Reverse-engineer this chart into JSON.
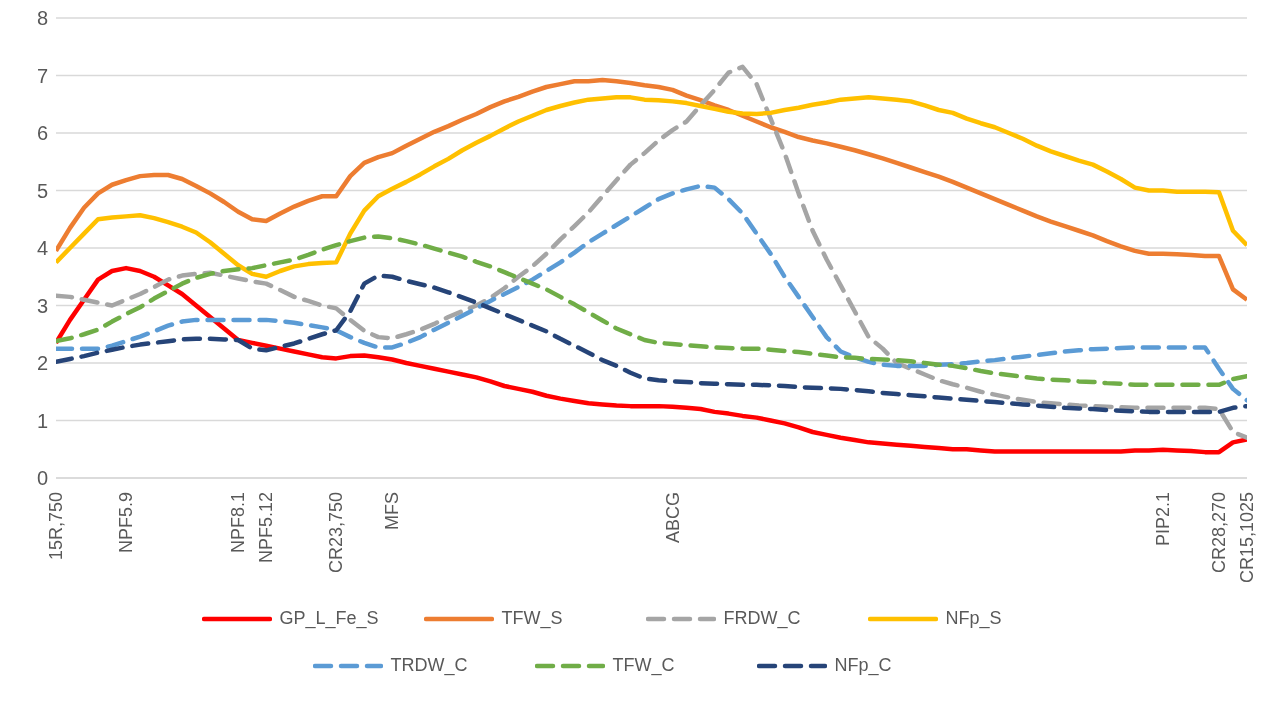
{
  "chart_data": {
    "type": "line",
    "categories": [
      "15R,750",
      null,
      null,
      null,
      null,
      "NPF5.9",
      null,
      null,
      null,
      null,
      null,
      null,
      null,
      "NPF8.1",
      null,
      "NPF5.12",
      null,
      null,
      null,
      null,
      "CR23,750",
      null,
      null,
      null,
      "MFS",
      null,
      null,
      null,
      null,
      null,
      null,
      null,
      null,
      null,
      null,
      null,
      null,
      null,
      null,
      null,
      null,
      null,
      null,
      null,
      "ABCG",
      null,
      null,
      null,
      null,
      null,
      null,
      null,
      null,
      null,
      null,
      null,
      null,
      null,
      null,
      null,
      null,
      null,
      null,
      null,
      null,
      null,
      null,
      null,
      null,
      null,
      null,
      null,
      null,
      null,
      null,
      null,
      null,
      null,
      null,
      "PIP2.1",
      null,
      null,
      null,
      "CR28,270",
      null,
      "CR15,1025"
    ],
    "series": [
      {
        "name": "GP_L_Fe_S",
        "color": "#ff0000",
        "line_style": "solid",
        "values": [
          2.35,
          2.75,
          3.1,
          3.45,
          3.6,
          3.65,
          3.6,
          3.5,
          3.35,
          3.2,
          3.0,
          2.8,
          2.6,
          2.4,
          2.35,
          2.3,
          2.25,
          2.2,
          2.15,
          2.1,
          2.08,
          2.12,
          2.13,
          2.1,
          2.06,
          2.0,
          1.95,
          1.9,
          1.85,
          1.8,
          1.75,
          1.68,
          1.6,
          1.55,
          1.5,
          1.43,
          1.38,
          1.34,
          1.3,
          1.28,
          1.26,
          1.25,
          1.25,
          1.25,
          1.24,
          1.22,
          1.2,
          1.15,
          1.12,
          1.08,
          1.05,
          1.0,
          0.95,
          0.88,
          0.8,
          0.75,
          0.7,
          0.66,
          0.62,
          0.6,
          0.58,
          0.56,
          0.54,
          0.52,
          0.5,
          0.5,
          0.48,
          0.46,
          0.46,
          0.46,
          0.46,
          0.46,
          0.46,
          0.46,
          0.46,
          0.46,
          0.46,
          0.48,
          0.48,
          0.49,
          0.48,
          0.47,
          0.45,
          0.45,
          0.62,
          0.67
        ]
      },
      {
        "name": "TFW_S",
        "color": "#ed7d31",
        "line_style": "solid",
        "values": [
          3.95,
          4.35,
          4.7,
          4.95,
          5.1,
          5.18,
          5.25,
          5.27,
          5.27,
          5.2,
          5.08,
          4.95,
          4.8,
          4.63,
          4.5,
          4.47,
          4.6,
          4.72,
          4.82,
          4.9,
          4.9,
          5.25,
          5.48,
          5.58,
          5.65,
          5.78,
          5.9,
          6.02,
          6.12,
          6.23,
          6.33,
          6.45,
          6.55,
          6.63,
          6.72,
          6.8,
          6.85,
          6.9,
          6.9,
          6.92,
          6.9,
          6.87,
          6.83,
          6.8,
          6.75,
          6.65,
          6.57,
          6.48,
          6.4,
          6.3,
          6.2,
          6.1,
          6.02,
          5.93,
          5.87,
          5.82,
          5.76,
          5.7,
          5.63,
          5.56,
          5.48,
          5.4,
          5.32,
          5.24,
          5.15,
          5.05,
          4.95,
          4.85,
          4.75,
          4.65,
          4.55,
          4.46,
          4.38,
          4.3,
          4.22,
          4.12,
          4.03,
          3.95,
          3.9,
          3.9,
          3.89,
          3.88,
          3.86,
          3.86,
          3.28,
          3.1
        ]
      },
      {
        "name": "FRDW_C",
        "color": "#a5a5a5",
        "line_style": "dashed",
        "values": [
          3.17,
          3.15,
          3.1,
          3.05,
          3.0,
          3.1,
          3.2,
          3.32,
          3.45,
          3.52,
          3.55,
          3.57,
          3.52,
          3.47,
          3.42,
          3.38,
          3.27,
          3.15,
          3.08,
          3.0,
          2.95,
          2.75,
          2.56,
          2.45,
          2.43,
          2.5,
          2.58,
          2.68,
          2.8,
          2.9,
          3.0,
          3.13,
          3.3,
          3.5,
          3.68,
          3.9,
          4.15,
          4.38,
          4.62,
          4.9,
          5.18,
          5.45,
          5.65,
          5.87,
          6.05,
          6.2,
          6.48,
          6.75,
          7.05,
          7.15,
          6.85,
          6.25,
          5.65,
          4.95,
          4.3,
          3.8,
          3.35,
          2.9,
          2.45,
          2.25,
          2.0,
          1.9,
          1.8,
          1.7,
          1.63,
          1.57,
          1.5,
          1.45,
          1.4,
          1.36,
          1.32,
          1.3,
          1.28,
          1.26,
          1.25,
          1.24,
          1.23,
          1.22,
          1.22,
          1.22,
          1.22,
          1.22,
          1.22,
          1.2,
          0.8,
          0.7
        ]
      },
      {
        "name": "NFp_S",
        "color": "#ffc000",
        "line_style": "solid",
        "values": [
          3.75,
          4.0,
          4.25,
          4.5,
          4.53,
          4.55,
          4.57,
          4.52,
          4.45,
          4.37,
          4.27,
          4.1,
          3.9,
          3.7,
          3.55,
          3.5,
          3.6,
          3.68,
          3.72,
          3.74,
          3.75,
          4.25,
          4.65,
          4.9,
          5.03,
          5.15,
          5.28,
          5.42,
          5.55,
          5.7,
          5.83,
          5.95,
          6.08,
          6.2,
          6.3,
          6.4,
          6.47,
          6.53,
          6.58,
          6.6,
          6.62,
          6.62,
          6.58,
          6.57,
          6.55,
          6.52,
          6.47,
          6.42,
          6.37,
          6.34,
          6.33,
          6.35,
          6.4,
          6.44,
          6.49,
          6.53,
          6.58,
          6.6,
          6.62,
          6.6,
          6.58,
          6.55,
          6.48,
          6.4,
          6.35,
          6.25,
          6.17,
          6.1,
          6.0,
          5.9,
          5.78,
          5.68,
          5.6,
          5.52,
          5.45,
          5.33,
          5.2,
          5.05,
          5.0,
          5.0,
          4.98,
          4.98,
          4.98,
          4.97,
          4.3,
          4.05
        ]
      },
      {
        "name": "TRDW_C",
        "color": "#5b9bd5",
        "line_style": "dashed",
        "values": [
          2.25,
          2.25,
          2.25,
          2.25,
          2.3,
          2.38,
          2.46,
          2.55,
          2.65,
          2.72,
          2.75,
          2.75,
          2.75,
          2.75,
          2.75,
          2.75,
          2.73,
          2.7,
          2.66,
          2.62,
          2.57,
          2.45,
          2.35,
          2.27,
          2.27,
          2.35,
          2.45,
          2.58,
          2.7,
          2.82,
          2.95,
          3.08,
          3.2,
          3.32,
          3.45,
          3.6,
          3.75,
          3.92,
          4.1,
          4.25,
          4.4,
          4.55,
          4.7,
          4.85,
          4.95,
          5.02,
          5.08,
          5.05,
          4.85,
          4.6,
          4.25,
          3.9,
          3.5,
          3.15,
          2.8,
          2.45,
          2.2,
          2.1,
          2.02,
          1.97,
          1.95,
          1.95,
          1.95,
          1.97,
          1.98,
          2.0,
          2.03,
          2.05,
          2.08,
          2.11,
          2.14,
          2.17,
          2.2,
          2.22,
          2.24,
          2.25,
          2.26,
          2.27,
          2.27,
          2.27,
          2.27,
          2.27,
          2.27,
          1.9,
          1.55,
          1.35
        ]
      },
      {
        "name": "TFW_C",
        "color": "#70ad47",
        "line_style": "dashed",
        "values": [
          2.38,
          2.43,
          2.5,
          2.58,
          2.72,
          2.85,
          2.97,
          3.12,
          3.25,
          3.38,
          3.48,
          3.55,
          3.6,
          3.63,
          3.65,
          3.7,
          3.75,
          3.8,
          3.88,
          3.97,
          4.05,
          4.12,
          4.18,
          4.2,
          4.17,
          4.12,
          4.06,
          3.99,
          3.92,
          3.85,
          3.76,
          3.68,
          3.58,
          3.48,
          3.38,
          3.28,
          3.15,
          3.02,
          2.88,
          2.74,
          2.6,
          2.5,
          2.4,
          2.35,
          2.33,
          2.31,
          2.29,
          2.27,
          2.26,
          2.25,
          2.25,
          2.23,
          2.21,
          2.19,
          2.16,
          2.13,
          2.1,
          2.09,
          2.07,
          2.06,
          2.05,
          2.03,
          2.0,
          1.97,
          1.95,
          1.91,
          1.86,
          1.82,
          1.79,
          1.76,
          1.73,
          1.71,
          1.7,
          1.68,
          1.67,
          1.65,
          1.64,
          1.62,
          1.62,
          1.62,
          1.62,
          1.62,
          1.62,
          1.62,
          1.72,
          1.77
        ]
      },
      {
        "name": "NFp_C",
        "color": "#264478",
        "line_style": "dashed",
        "values": [
          2.02,
          2.07,
          2.12,
          2.18,
          2.23,
          2.28,
          2.32,
          2.35,
          2.38,
          2.41,
          2.42,
          2.42,
          2.41,
          2.4,
          2.25,
          2.22,
          2.28,
          2.34,
          2.42,
          2.5,
          2.57,
          2.9,
          3.38,
          3.52,
          3.5,
          3.43,
          3.37,
          3.31,
          3.23,
          3.14,
          3.05,
          2.95,
          2.85,
          2.75,
          2.65,
          2.55,
          2.42,
          2.3,
          2.18,
          2.05,
          1.95,
          1.83,
          1.73,
          1.7,
          1.68,
          1.67,
          1.65,
          1.64,
          1.63,
          1.62,
          1.62,
          1.61,
          1.6,
          1.58,
          1.57,
          1.56,
          1.55,
          1.53,
          1.51,
          1.48,
          1.46,
          1.44,
          1.42,
          1.4,
          1.38,
          1.36,
          1.34,
          1.32,
          1.3,
          1.28,
          1.26,
          1.24,
          1.22,
          1.21,
          1.2,
          1.18,
          1.17,
          1.16,
          1.15,
          1.15,
          1.15,
          1.15,
          1.15,
          1.15,
          1.22,
          1.25
        ]
      }
    ],
    "ylim": [
      0,
      8
    ],
    "yticks": [
      0,
      1,
      2,
      3,
      4,
      5,
      6,
      7,
      8
    ],
    "grid": "y",
    "legend": "bottom",
    "marker": "none"
  }
}
